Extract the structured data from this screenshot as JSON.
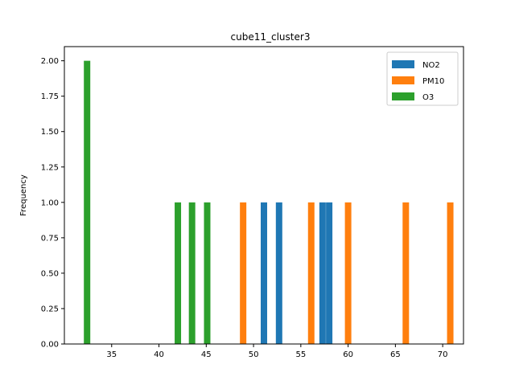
{
  "chart_data": {
    "type": "bar",
    "title": "cube11_cluster3",
    "xlabel": "",
    "ylabel": "Frequency",
    "xlim": [
      30.0,
      72.2
    ],
    "ylim": [
      0,
      2.1
    ],
    "bar_width": 0.68,
    "x_ticks": [
      35,
      40,
      45,
      50,
      55,
      60,
      65,
      70
    ],
    "x_tick_labels": [
      "35",
      "40",
      "45",
      "50",
      "55",
      "60",
      "65",
      "70"
    ],
    "y_ticks": [
      0,
      0.25,
      0.5,
      0.75,
      1.0,
      1.25,
      1.5,
      1.75,
      2.0
    ],
    "y_tick_labels": [
      "0.00",
      "0.25",
      "0.50",
      "0.75",
      "1.00",
      "1.25",
      "1.50",
      "1.75",
      "2.00"
    ],
    "grid": false,
    "legend_position": "top-right",
    "series": [
      {
        "name": "NO2",
        "color": "#1f77b4",
        "x": [
          51.1,
          52.7,
          57.3,
          58.0
        ],
        "values": [
          1,
          1,
          1,
          1
        ]
      },
      {
        "name": "PM10",
        "color": "#ff7f0e",
        "x": [
          48.9,
          56.1,
          60.0,
          66.1,
          70.8
        ],
        "values": [
          1,
          1,
          1,
          1,
          1
        ]
      },
      {
        "name": "O3",
        "color": "#2ca02c",
        "x": [
          32.4,
          42.0,
          43.5,
          45.1
        ],
        "values": [
          2,
          1,
          1,
          1
        ]
      }
    ]
  }
}
